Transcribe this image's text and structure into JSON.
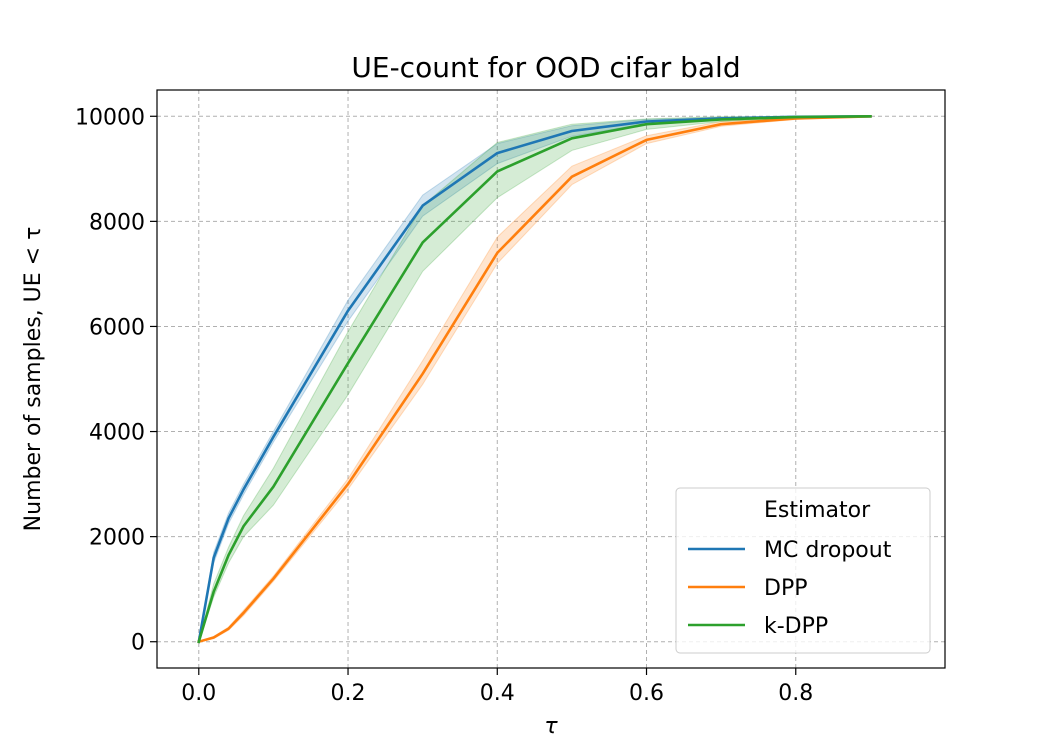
{
  "chart_data": {
    "type": "line",
    "title": "UE-count for OOD cifar bald",
    "xlabel": "τ",
    "ylabel": "Number of samples, UE < τ",
    "xlim": [
      -0.056,
      1.0
    ],
    "ylim": [
      -500,
      10500
    ],
    "xticks": [
      "0.0",
      "0.2",
      "0.4",
      "0.6",
      "0.8"
    ],
    "xtick_values": [
      0.0,
      0.2,
      0.4,
      0.6,
      0.8
    ],
    "yticks": [
      "0",
      "2000",
      "4000",
      "6000",
      "8000",
      "10000"
    ],
    "ytick_values": [
      0,
      2000,
      4000,
      6000,
      8000,
      10000
    ],
    "grid": true,
    "legend": {
      "title": "Estimator",
      "placement": "lower-right"
    },
    "series": [
      {
        "name": "MC dropout",
        "color": "#1f77b4",
        "x": [
          0.0,
          0.02,
          0.04,
          0.06,
          0.1,
          0.2,
          0.3,
          0.4,
          0.5,
          0.6,
          0.7,
          0.8,
          0.9
        ],
        "y": [
          0,
          1600,
          2350,
          2900,
          3900,
          6300,
          8300,
          9300,
          9720,
          9900,
          9960,
          9990,
          10000
        ],
        "lower": [
          0,
          1500,
          2250,
          2800,
          3800,
          6100,
          8100,
          9100,
          9620,
          9860,
          9940,
          9980,
          10000
        ],
        "upper": [
          0,
          1700,
          2450,
          3000,
          4000,
          6500,
          8500,
          9480,
          9820,
          9940,
          9980,
          10000,
          10000
        ]
      },
      {
        "name": "DPP",
        "color": "#ff7f0e",
        "x": [
          0.0,
          0.02,
          0.04,
          0.06,
          0.1,
          0.2,
          0.3,
          0.4,
          0.5,
          0.6,
          0.7,
          0.8,
          0.9
        ],
        "y": [
          0,
          80,
          250,
          550,
          1200,
          3000,
          5100,
          7400,
          8850,
          9550,
          9850,
          9960,
          10000
        ],
        "lower": [
          0,
          60,
          220,
          500,
          1150,
          2900,
          4900,
          7200,
          8700,
          9480,
          9810,
          9940,
          10000
        ],
        "upper": [
          0,
          100,
          280,
          600,
          1250,
          3100,
          5350,
          7700,
          9050,
          9630,
          9900,
          9980,
          10000
        ]
      },
      {
        "name": "k-DPP",
        "color": "#2ca02c",
        "x": [
          0.0,
          0.02,
          0.04,
          0.06,
          0.1,
          0.2,
          0.3,
          0.4,
          0.5,
          0.6,
          0.7,
          0.8,
          0.9
        ],
        "y": [
          0,
          950,
          1650,
          2200,
          2950,
          5300,
          7600,
          8950,
          9580,
          9850,
          9940,
          9985,
          10000
        ],
        "lower": [
          0,
          850,
          1500,
          2000,
          2600,
          4700,
          7050,
          8450,
          9350,
          9750,
          9900,
          9975,
          10000
        ],
        "upper": [
          0,
          1100,
          1800,
          2400,
          3300,
          5900,
          8300,
          9500,
          9850,
          9950,
          9990,
          10000,
          10000
        ]
      }
    ]
  }
}
